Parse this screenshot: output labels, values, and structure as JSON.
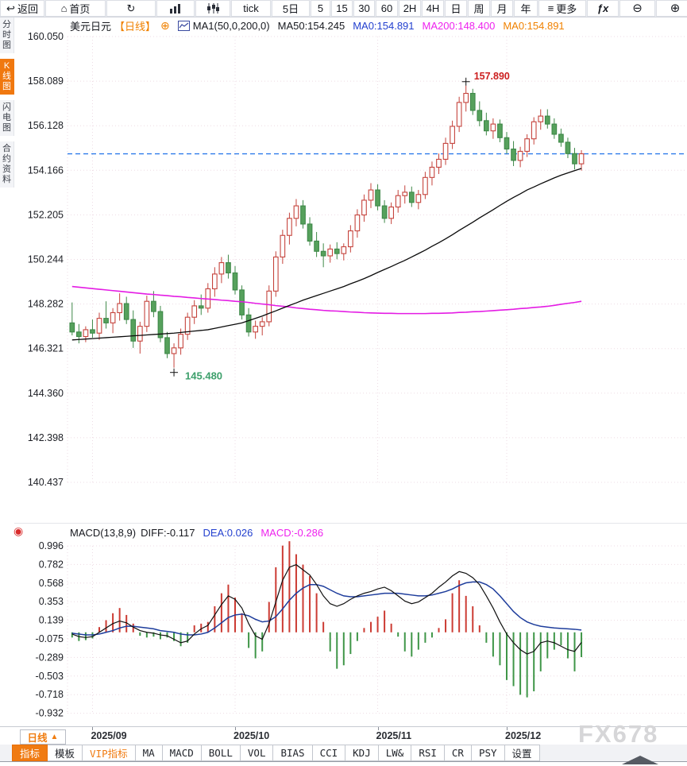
{
  "toolbar": {
    "items": [
      {
        "name": "back-button",
        "label": "返回",
        "icon": "back-arrow-icon",
        "glyph": "↩"
      },
      {
        "name": "home-button",
        "label": "首页",
        "icon": "home-icon",
        "glyph": "⌂"
      },
      {
        "name": "refresh-button",
        "label": "",
        "icon": "refresh-icon",
        "glyph": "↻"
      },
      {
        "name": "chart-type-button",
        "label": "",
        "icon": "bar-chart-icon",
        "glyph": "svg-bars"
      },
      {
        "name": "candle-style-button",
        "label": "",
        "icon": "candles-icon",
        "glyph": "svg-candles"
      },
      {
        "name": "interval-tick",
        "label": "tick"
      },
      {
        "name": "interval-5d",
        "label": "5日"
      },
      {
        "name": "interval-5",
        "label": "5"
      },
      {
        "name": "interval-15",
        "label": "15"
      },
      {
        "name": "interval-30",
        "label": "30"
      },
      {
        "name": "interval-60",
        "label": "60"
      },
      {
        "name": "interval-2h",
        "label": "2H"
      },
      {
        "name": "interval-4h",
        "label": "4H"
      },
      {
        "name": "interval-day",
        "label": "日"
      },
      {
        "name": "interval-week",
        "label": "周"
      },
      {
        "name": "interval-month",
        "label": "月"
      },
      {
        "name": "interval-year",
        "label": "年"
      },
      {
        "name": "more-button",
        "label": "更多",
        "icon": "hamburger-icon",
        "glyph": "≡"
      },
      {
        "name": "formula-button",
        "label": "ƒx"
      },
      {
        "name": "zoom-out-button",
        "label": "",
        "icon": "zoom-out-icon",
        "glyph": "⊖"
      },
      {
        "name": "zoom-in-button",
        "label": "",
        "icon": "zoom-in-icon",
        "glyph": "⊕"
      }
    ]
  },
  "sidebar": {
    "items": [
      {
        "name": "tab-time-chart",
        "label": "分时图",
        "active": false
      },
      {
        "name": "tab-kline-chart",
        "label": "K线图",
        "active": true
      },
      {
        "name": "tab-flash-chart",
        "label": "闪电图",
        "active": false
      },
      {
        "name": "tab-contract-info",
        "label": "合约资料",
        "active": false
      }
    ]
  },
  "chart_header": {
    "symbol": "美元日元",
    "period": "【日线】",
    "plus": "⊕",
    "ma_group": "MA1(50,0,200,0)",
    "ma50": "MA50:154.245",
    "ma0_blue": "MA0:154.891",
    "ma200": "MA200:148.400",
    "ma0_orange": "MA0:154.891"
  },
  "macd_header": {
    "title": "MACD(13,8,9)",
    "diff": "DIFF:-0.117",
    "dea": "DEA:0.026",
    "macd": "MACD:-0.286"
  },
  "x_axis": {
    "period_label": "日线",
    "arrow": "▲"
  },
  "watermark": "FX678",
  "bottom_tabs": [
    {
      "name": "tab-indicator",
      "label": "指标",
      "style": "active"
    },
    {
      "name": "tab-template",
      "label": "模板",
      "style": "normal"
    },
    {
      "name": "tab-vip-indicator",
      "label": "VIP指标",
      "style": "vip"
    },
    {
      "name": "tab-ma",
      "label": "MA",
      "style": "normal"
    },
    {
      "name": "tab-macd",
      "label": "MACD",
      "style": "normal"
    },
    {
      "name": "tab-boll",
      "label": "BOLL",
      "style": "normal"
    },
    {
      "name": "tab-vol",
      "label": "VOL",
      "style": "normal"
    },
    {
      "name": "tab-bias",
      "label": "BIAS",
      "style": "normal"
    },
    {
      "name": "tab-cci",
      "label": "CCI",
      "style": "normal"
    },
    {
      "name": "tab-kdj",
      "label": "KDJ",
      "style": "normal"
    },
    {
      "name": "tab-lwr",
      "label": "LW&",
      "style": "normal"
    },
    {
      "name": "tab-rsi",
      "label": "RSI",
      "style": "normal"
    },
    {
      "name": "tab-cr",
      "label": "CR",
      "style": "normal"
    },
    {
      "name": "tab-psy",
      "label": "PSY",
      "style": "normal"
    },
    {
      "name": "tab-settings",
      "label": "设置",
      "style": "normal"
    }
  ],
  "colors": {
    "up_candle": "#c5433c",
    "down_candle": "#56a15c",
    "down_candle_stroke": "#3e8848",
    "ma50": "#0a0a0a",
    "ma200": "#e41ce4",
    "dea_line": "#1e3d9c",
    "diff_line": "#101010",
    "dashed_price_line": "#2e7ceb",
    "grid": "#eedbe4",
    "accent_orange": "#f0780f",
    "high_label": "#cc2020",
    "low_label": "#3ea06c"
  },
  "chart_data": {
    "type": "candlestick_with_macd",
    "symbol": "美元日元",
    "period": "日线",
    "current_price": 154.891,
    "high_annotation": {
      "label": "157.890",
      "index": 58,
      "price": 157.89
    },
    "low_annotation": {
      "label": "145.480",
      "index": 15,
      "price": 145.48
    },
    "price_ticks": [
      "160.050",
      "158.089",
      "156.128",
      "154.166",
      "152.205",
      "150.244",
      "148.282",
      "146.321",
      "144.360",
      "142.398",
      "140.437"
    ],
    "price_range": [
      140.437,
      160.05
    ],
    "month_ticks": [
      {
        "label": "2025/09",
        "index": 3
      },
      {
        "label": "2025/10",
        "index": 24
      },
      {
        "label": "2025/11",
        "index": 45
      },
      {
        "label": "2025/12",
        "index": 64
      }
    ],
    "candles": [
      [
        147.45,
        148.35,
        146.9,
        147.05
      ],
      [
        147.05,
        147.4,
        146.55,
        146.85
      ],
      [
        146.85,
        147.3,
        146.6,
        147.15
      ],
      [
        147.15,
        147.6,
        146.8,
        147.0
      ],
      [
        147.0,
        147.9,
        146.7,
        147.65
      ],
      [
        147.65,
        148.4,
        147.2,
        147.45
      ],
      [
        147.45,
        148.1,
        147.0,
        147.9
      ],
      [
        147.9,
        148.75,
        147.55,
        148.3
      ],
      [
        148.3,
        148.6,
        147.4,
        147.6
      ],
      [
        147.6,
        148.0,
        146.35,
        146.65
      ],
      [
        146.65,
        147.5,
        146.1,
        147.3
      ],
      [
        147.3,
        148.65,
        147.05,
        148.4
      ],
      [
        148.4,
        148.85,
        147.7,
        147.95
      ],
      [
        147.95,
        148.2,
        146.6,
        146.8
      ],
      [
        146.8,
        147.05,
        145.9,
        146.1
      ],
      [
        146.1,
        146.55,
        145.48,
        146.35
      ],
      [
        146.35,
        147.2,
        146.05,
        146.95
      ],
      [
        146.95,
        147.9,
        146.7,
        147.7
      ],
      [
        147.7,
        148.45,
        147.4,
        148.2
      ],
      [
        148.2,
        148.7,
        147.8,
        148.1
      ],
      [
        148.1,
        149.2,
        147.9,
        148.95
      ],
      [
        148.95,
        149.9,
        148.6,
        149.6
      ],
      [
        149.6,
        150.35,
        149.2,
        150.1
      ],
      [
        150.1,
        150.45,
        149.4,
        149.65
      ],
      [
        149.65,
        149.95,
        148.7,
        148.9
      ],
      [
        148.9,
        149.1,
        147.6,
        147.8
      ],
      [
        147.8,
        148.1,
        146.85,
        147.05
      ],
      [
        147.05,
        147.55,
        146.75,
        147.3
      ],
      [
        147.3,
        147.7,
        146.9,
        147.5
      ],
      [
        147.5,
        149.1,
        147.3,
        148.85
      ],
      [
        148.85,
        150.6,
        148.6,
        150.35
      ],
      [
        150.35,
        151.55,
        150.05,
        151.3
      ],
      [
        151.3,
        152.3,
        150.9,
        152.05
      ],
      [
        152.05,
        152.9,
        151.7,
        152.6
      ],
      [
        152.6,
        152.85,
        151.6,
        151.8
      ],
      [
        151.8,
        152.1,
        150.85,
        151.05
      ],
      [
        151.05,
        151.45,
        150.35,
        150.6
      ],
      [
        150.6,
        150.95,
        149.9,
        150.4
      ],
      [
        150.4,
        150.9,
        150.1,
        150.7
      ],
      [
        150.7,
        151.0,
        150.25,
        150.5
      ],
      [
        150.5,
        150.95,
        150.2,
        150.8
      ],
      [
        150.8,
        151.75,
        150.55,
        151.5
      ],
      [
        151.5,
        152.45,
        151.2,
        152.2
      ],
      [
        152.2,
        153.1,
        151.9,
        152.85
      ],
      [
        152.85,
        153.6,
        152.5,
        153.3
      ],
      [
        153.3,
        153.55,
        152.4,
        152.6
      ],
      [
        152.6,
        152.85,
        151.85,
        152.05
      ],
      [
        152.05,
        152.75,
        151.8,
        152.55
      ],
      [
        152.55,
        153.3,
        152.3,
        153.05
      ],
      [
        153.05,
        153.5,
        152.7,
        153.2
      ],
      [
        153.2,
        153.45,
        152.55,
        152.75
      ],
      [
        152.75,
        153.3,
        152.45,
        153.1
      ],
      [
        153.1,
        154.1,
        152.9,
        153.85
      ],
      [
        153.85,
        154.55,
        153.5,
        154.3
      ],
      [
        154.3,
        154.9,
        154.0,
        154.65
      ],
      [
        154.65,
        155.6,
        154.4,
        155.35
      ],
      [
        155.35,
        156.35,
        155.1,
        156.1
      ],
      [
        156.1,
        157.4,
        155.85,
        157.15
      ],
      [
        157.15,
        157.89,
        156.75,
        157.55
      ],
      [
        157.55,
        157.75,
        156.6,
        156.8
      ],
      [
        156.8,
        157.2,
        156.1,
        156.35
      ],
      [
        156.35,
        156.7,
        155.7,
        155.9
      ],
      [
        155.9,
        156.45,
        155.55,
        156.2
      ],
      [
        156.2,
        156.4,
        155.4,
        155.6
      ],
      [
        155.6,
        155.85,
        154.9,
        155.1
      ],
      [
        155.1,
        155.45,
        154.35,
        154.6
      ],
      [
        154.6,
        155.2,
        154.3,
        155.0
      ],
      [
        155.0,
        155.75,
        154.75,
        155.55
      ],
      [
        155.55,
        156.5,
        155.3,
        156.3
      ],
      [
        156.3,
        156.85,
        155.95,
        156.55
      ],
      [
        156.55,
        156.85,
        156.0,
        156.2
      ],
      [
        156.2,
        156.45,
        155.55,
        155.75
      ],
      [
        155.75,
        156.0,
        155.2,
        155.4
      ],
      [
        155.4,
        155.6,
        154.7,
        154.9
      ],
      [
        154.9,
        155.15,
        154.2,
        154.45
      ],
      [
        154.45,
        155.05,
        154.15,
        154.891
      ]
    ],
    "ma50": [
      146.7,
      146.72,
      146.74,
      146.76,
      146.78,
      146.8,
      146.82,
      146.84,
      146.86,
      146.88,
      146.9,
      146.92,
      146.94,
      146.96,
      146.98,
      147.0,
      147.03,
      147.06,
      147.09,
      147.12,
      147.15,
      147.21,
      147.27,
      147.33,
      147.39,
      147.45,
      147.55,
      147.65,
      147.75,
      147.87,
      147.98,
      148.1,
      148.22,
      148.33,
      148.45,
      148.55,
      148.65,
      148.75,
      148.85,
      148.95,
      149.05,
      149.17,
      149.28,
      149.4,
      149.53,
      149.67,
      149.8,
      149.93,
      150.07,
      150.2,
      150.35,
      150.5,
      150.65,
      150.82,
      150.98,
      151.15,
      151.33,
      151.52,
      151.7,
      151.88,
      152.07,
      152.25,
      152.43,
      152.62,
      152.8,
      152.97,
      153.13,
      153.3,
      153.43,
      153.57,
      153.7,
      153.83,
      153.95,
      154.05,
      154.15,
      154.245
    ],
    "ma200": [
      149.05,
      149.02,
      148.99,
      148.96,
      148.93,
      148.9,
      148.87,
      148.84,
      148.81,
      148.78,
      148.75,
      148.72,
      148.7,
      148.67,
      148.65,
      148.62,
      148.6,
      148.57,
      148.55,
      148.52,
      148.5,
      148.48,
      148.45,
      148.43,
      148.4,
      148.38,
      148.35,
      148.31,
      148.28,
      148.25,
      148.21,
      148.18,
      148.15,
      148.11,
      148.08,
      148.05,
      148.03,
      148.0,
      147.98,
      147.97,
      147.95,
      147.93,
      147.92,
      147.9,
      147.89,
      147.88,
      147.87,
      147.87,
      147.86,
      147.86,
      147.86,
      147.86,
      147.86,
      147.87,
      147.87,
      147.88,
      147.89,
      147.91,
      147.92,
      147.94,
      147.95,
      147.97,
      147.99,
      148.01,
      148.03,
      148.05,
      148.08,
      148.1,
      148.13,
      148.15,
      148.18,
      148.22,
      148.27,
      148.31,
      148.35,
      148.4
    ],
    "macd": {
      "params": "13,8,9",
      "diff_last": -0.117,
      "dea_last": 0.026,
      "macd_last": -0.286,
      "ticks": [
        "0.996",
        "0.782",
        "0.568",
        "0.353",
        "0.139",
        "-0.075",
        "-0.289",
        "-0.503",
        "-0.718",
        "-0.932"
      ],
      "hist": [
        -0.06,
        -0.1,
        -0.09,
        -0.07,
        0.06,
        0.14,
        0.22,
        0.28,
        0.2,
        0.1,
        -0.04,
        -0.06,
        -0.05,
        -0.08,
        -0.06,
        -0.1,
        -0.16,
        -0.12,
        0.08,
        0.1,
        0.12,
        0.3,
        0.45,
        0.55,
        0.4,
        0.22,
        -0.18,
        -0.3,
        -0.22,
        0.35,
        0.75,
        1.0,
        1.05,
        0.9,
        0.78,
        0.65,
        0.45,
        0.12,
        -0.22,
        -0.42,
        -0.38,
        -0.25,
        -0.1,
        0.05,
        0.12,
        0.18,
        0.25,
        0.1,
        -0.05,
        -0.22,
        -0.28,
        -0.2,
        -0.12,
        -0.06,
        0.05,
        0.15,
        0.45,
        0.6,
        0.42,
        0.3,
        0.08,
        -0.12,
        -0.28,
        -0.38,
        -0.55,
        -0.62,
        -0.72,
        -0.75,
        -0.68,
        -0.45,
        -0.3,
        -0.2,
        -0.15,
        -0.3,
        -0.45,
        -0.286
      ],
      "diff": [
        -0.02,
        -0.05,
        -0.06,
        -0.05,
        0.0,
        0.05,
        0.1,
        0.13,
        0.11,
        0.06,
        0.02,
        0.0,
        -0.01,
        -0.03,
        -0.04,
        -0.08,
        -0.12,
        -0.1,
        -0.02,
        0.04,
        0.08,
        0.2,
        0.32,
        0.42,
        0.38,
        0.28,
        0.1,
        -0.04,
        -0.08,
        0.1,
        0.35,
        0.6,
        0.75,
        0.78,
        0.72,
        0.66,
        0.55,
        0.42,
        0.33,
        0.3,
        0.33,
        0.38,
        0.42,
        0.45,
        0.47,
        0.5,
        0.52,
        0.48,
        0.42,
        0.36,
        0.33,
        0.35,
        0.4,
        0.45,
        0.52,
        0.58,
        0.65,
        0.7,
        0.68,
        0.63,
        0.55,
        0.42,
        0.28,
        0.12,
        -0.02,
        -0.12,
        -0.2,
        -0.25,
        -0.22,
        -0.12,
        -0.1,
        -0.12,
        -0.16,
        -0.2,
        -0.22,
        -0.117
      ],
      "dea": [
        -0.01,
        -0.02,
        -0.03,
        -0.03,
        -0.02,
        0.0,
        0.02,
        0.05,
        0.07,
        0.07,
        0.06,
        0.05,
        0.04,
        0.02,
        0.01,
        0.0,
        -0.02,
        -0.03,
        -0.03,
        -0.02,
        0.0,
        0.05,
        0.11,
        0.17,
        0.2,
        0.21,
        0.19,
        0.15,
        0.12,
        0.13,
        0.18,
        0.27,
        0.37,
        0.45,
        0.51,
        0.55,
        0.55,
        0.53,
        0.49,
        0.45,
        0.42,
        0.41,
        0.41,
        0.42,
        0.43,
        0.44,
        0.45,
        0.45,
        0.45,
        0.44,
        0.43,
        0.42,
        0.42,
        0.43,
        0.45,
        0.47,
        0.5,
        0.54,
        0.57,
        0.58,
        0.58,
        0.55,
        0.5,
        0.42,
        0.33,
        0.24,
        0.17,
        0.12,
        0.09,
        0.07,
        0.06,
        0.05,
        0.045,
        0.04,
        0.035,
        0.026
      ]
    }
  }
}
